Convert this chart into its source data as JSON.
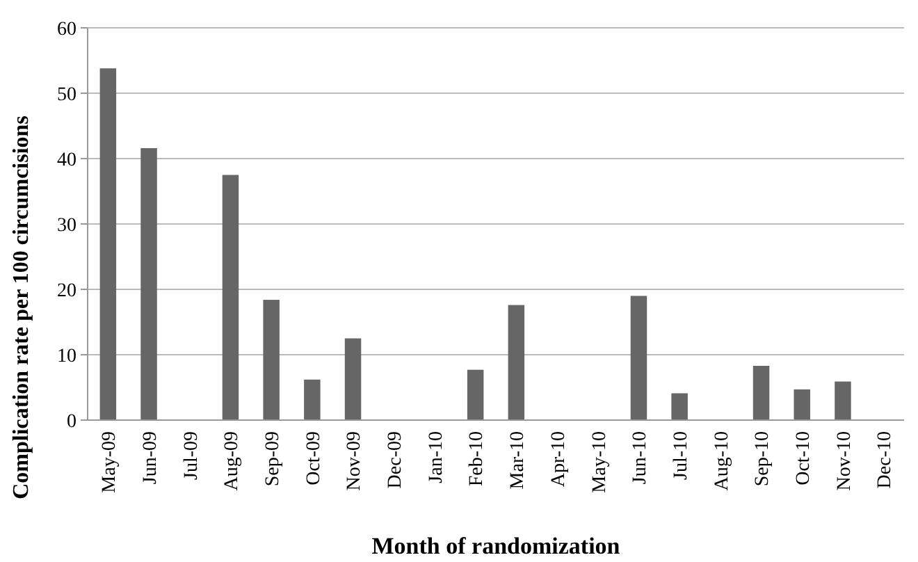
{
  "chart_data": {
    "type": "bar",
    "xlabel": "Month of randomization",
    "ylabel": "Complication rate per 100 circumcisions",
    "categories": [
      "May-09",
      "Jun-09",
      "Jul-09",
      "Aug-09",
      "Sep-09",
      "Oct-09",
      "Nov-09",
      "Dec-09",
      "Jan-10",
      "Feb-10",
      "Mar-10",
      "Apr-10",
      "May-10",
      "Jun-10",
      "Jul-10",
      "Aug-10",
      "Sep-10",
      "Oct-10",
      "Nov-10",
      "Dec-10"
    ],
    "values": [
      53.8,
      41.6,
      0,
      37.5,
      18.4,
      6.2,
      12.5,
      0,
      0,
      7.7,
      17.6,
      0,
      0,
      19.0,
      4.1,
      0,
      8.3,
      4.7,
      5.9,
      0
    ],
    "color": "#666666",
    "ylim": [
      0,
      60
    ],
    "yticks": [
      0,
      10,
      20,
      30,
      40,
      50,
      60
    ],
    "grid": "y"
  }
}
